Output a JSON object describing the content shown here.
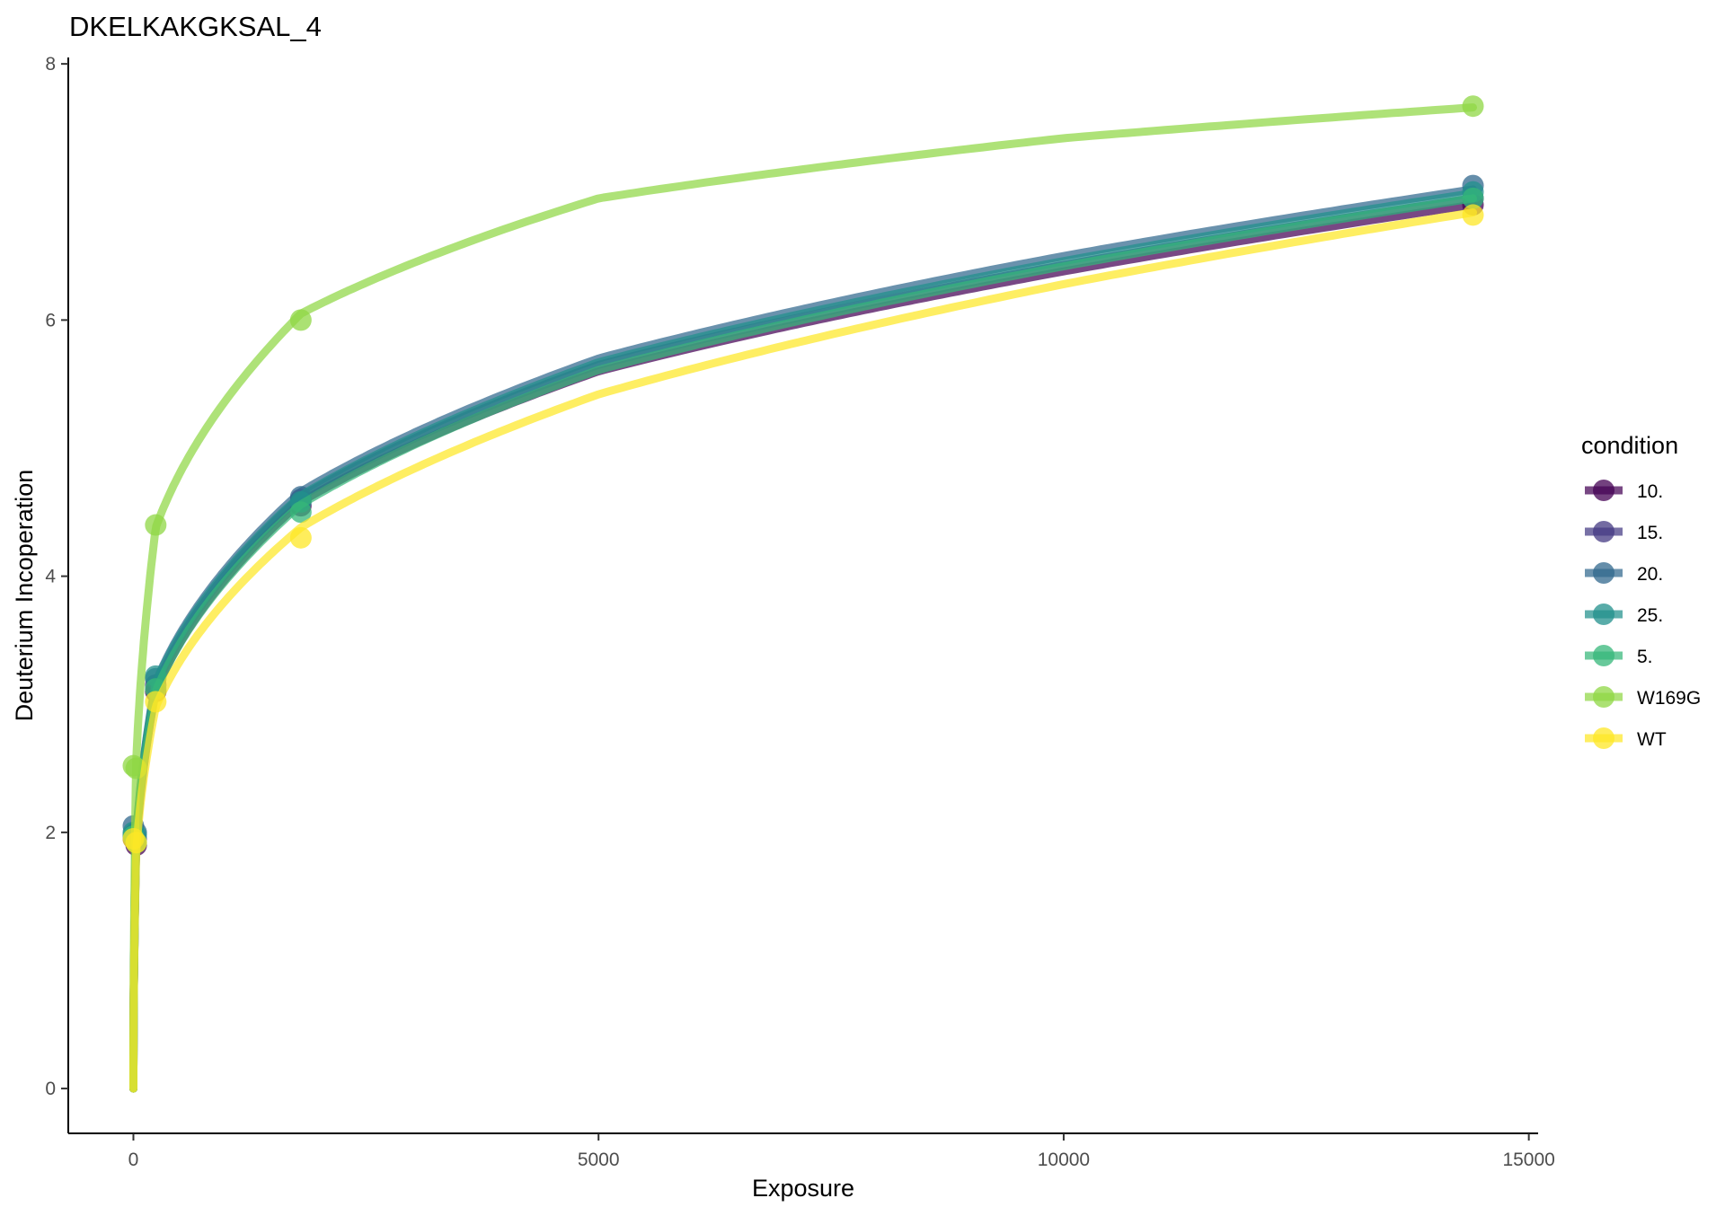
{
  "chart_data": {
    "type": "line",
    "title": "DKELKAKGKSAL_4",
    "xlabel": "Exposure",
    "ylabel": "Deuterium Incoperation",
    "xlim": [
      -700,
      15100
    ],
    "ylim": [
      -0.35,
      8.05
    ],
    "x_ticks": [
      0,
      5000,
      10000,
      15000
    ],
    "x_tick_labels": [
      "0",
      "5000",
      "10000",
      "15000"
    ],
    "y_ticks": [
      0,
      2,
      4,
      6,
      8
    ],
    "y_tick_labels": [
      "0",
      "2",
      "4",
      "6",
      "8"
    ],
    "grid": false,
    "legend": {
      "title": "condition",
      "position": "right"
    },
    "x": [
      0,
      30,
      240,
      1800,
      14400
    ],
    "series": [
      {
        "name": "10.",
        "color": "#440154",
        "points": [
          1.95,
          1.9,
          3.1,
          4.55,
          6.9
        ],
        "curve": [
          [
            0,
            0
          ],
          [
            30,
            1.9
          ],
          [
            240,
            3.1
          ],
          [
            1800,
            4.58
          ],
          [
            5000,
            5.6
          ],
          [
            10000,
            6.38
          ],
          [
            14400,
            6.9
          ]
        ]
      },
      {
        "name": "15.",
        "color": "#443A83",
        "points": [
          1.98,
          1.95,
          3.15,
          4.6,
          6.95
        ],
        "curve": [
          [
            0,
            0
          ],
          [
            30,
            1.93
          ],
          [
            240,
            3.13
          ],
          [
            1800,
            4.62
          ],
          [
            5000,
            5.65
          ],
          [
            10000,
            6.43
          ],
          [
            14400,
            6.95
          ]
        ]
      },
      {
        "name": "20.",
        "color": "#31688E",
        "points": [
          2.05,
          2.0,
          3.2,
          4.62,
          7.05
        ],
        "curve": [
          [
            0,
            0
          ],
          [
            30,
            1.96
          ],
          [
            240,
            3.17
          ],
          [
            1800,
            4.66
          ],
          [
            5000,
            5.7
          ],
          [
            10000,
            6.5
          ],
          [
            14400,
            7.02
          ]
        ]
      },
      {
        "name": "25.",
        "color": "#21908C",
        "points": [
          2.0,
          1.98,
          3.22,
          4.58,
          7.0
        ],
        "curve": [
          [
            0,
            0
          ],
          [
            30,
            1.95
          ],
          [
            240,
            3.16
          ],
          [
            1800,
            4.63
          ],
          [
            5000,
            5.67
          ],
          [
            10000,
            6.46
          ],
          [
            14400,
            6.99
          ]
        ]
      },
      {
        "name": "5.",
        "color": "#35B779",
        "points": [
          1.97,
          1.92,
          3.12,
          4.5,
          6.95
        ],
        "curve": [
          [
            0,
            0
          ],
          [
            30,
            1.92
          ],
          [
            240,
            3.1
          ],
          [
            1800,
            4.56
          ],
          [
            5000,
            5.61
          ],
          [
            10000,
            6.42
          ],
          [
            14400,
            6.95
          ]
        ]
      },
      {
        "name": "W169G",
        "color": "#8FD744",
        "points": [
          2.52,
          2.5,
          4.4,
          6.0,
          7.67
        ],
        "curve": [
          [
            0,
            0
          ],
          [
            30,
            2.55
          ],
          [
            240,
            4.38
          ],
          [
            1800,
            6.05
          ],
          [
            5000,
            6.95
          ],
          [
            10000,
            7.42
          ],
          [
            14400,
            7.66
          ]
        ]
      },
      {
        "name": "WT",
        "color": "#FDE725",
        "points": [
          1.95,
          1.92,
          3.02,
          4.3,
          6.82
        ],
        "curve": [
          [
            0,
            0
          ],
          [
            30,
            1.85
          ],
          [
            240,
            2.98
          ],
          [
            1800,
            4.38
          ],
          [
            5000,
            5.42
          ],
          [
            10000,
            6.28
          ],
          [
            14400,
            6.84
          ]
        ]
      }
    ]
  }
}
